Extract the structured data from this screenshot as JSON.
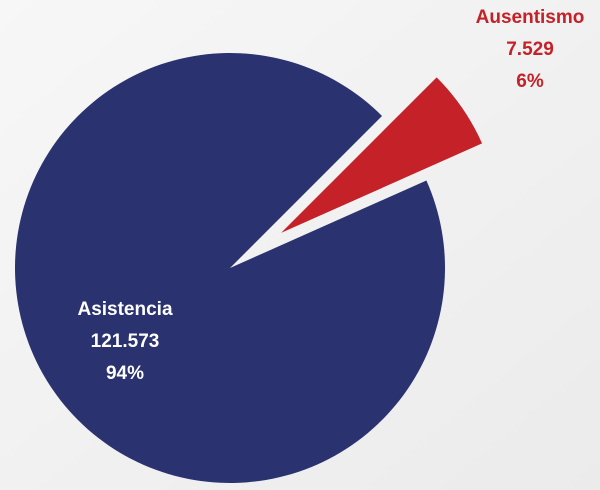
{
  "chart_data": {
    "type": "pie",
    "categories": [
      "Asistencia",
      "Ausentismo"
    ],
    "values": [
      121573,
      7529
    ],
    "value_labels": [
      "121.573",
      "7.529"
    ],
    "percentages": [
      94,
      6
    ],
    "percentage_labels": [
      "94%",
      "6%"
    ],
    "colors": [
      "#2a3270",
      "#c42128"
    ],
    "label_colors": [
      "#ffffff",
      "#c42128"
    ],
    "exploded": [
      false,
      true
    ]
  }
}
